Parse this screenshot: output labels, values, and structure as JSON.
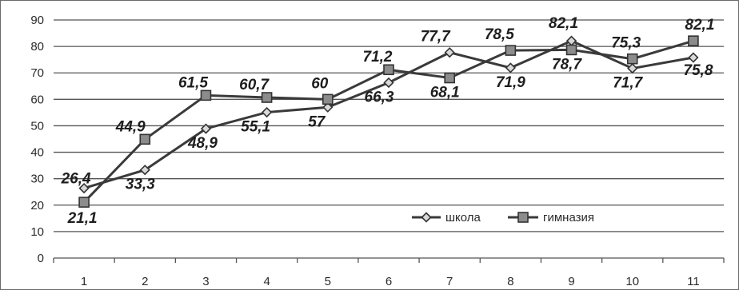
{
  "chart_data": {
    "type": "line",
    "title": "",
    "xlabel": "",
    "ylabel": "",
    "categories": [
      "1",
      "2",
      "3",
      "4",
      "5",
      "6",
      "7",
      "8",
      "9",
      "10",
      "11"
    ],
    "ylim": [
      0,
      90
    ],
    "yticks": [
      0,
      10,
      20,
      30,
      40,
      50,
      60,
      70,
      80,
      90
    ],
    "grid": true,
    "legend": "bottom-right",
    "series": [
      {
        "name": "школа",
        "marker": "diamond",
        "values": [
          26.4,
          33.3,
          48.9,
          55.1,
          57,
          66.3,
          77.7,
          71.9,
          82.1,
          71.7,
          75.8
        ],
        "labels": [
          "26,4",
          "33,3",
          "48,9",
          "55,1",
          "57",
          "66,3",
          "77,7",
          "71,9",
          "82,1",
          "71,7",
          "75,8"
        ]
      },
      {
        "name": "гимназия",
        "marker": "square",
        "values": [
          21.1,
          44.9,
          61.5,
          60.7,
          60,
          71.2,
          68.1,
          78.5,
          78.7,
          75.3,
          82.1
        ],
        "labels": [
          "21,1",
          "44,9",
          "61,5",
          "60,7",
          "60",
          "71,2",
          "68,1",
          "78,5",
          "78,7",
          "75,3",
          "82,1"
        ]
      }
    ],
    "colors": {
      "line": "#3a3a3a",
      "grid": "#555555",
      "marker_fill_diamond": "#d9d9d9",
      "marker_fill_square": "#8c8c8c"
    }
  }
}
